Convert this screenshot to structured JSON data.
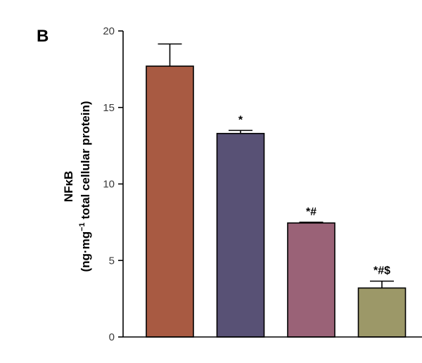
{
  "chart_data": {
    "type": "bar",
    "panel_label": "B",
    "ylabel_line1": "NFκB",
    "ylabel_line2_parts": [
      "(ng·mg",
      "−1",
      " total cellular protein)"
    ],
    "ylim": [
      0,
      20
    ],
    "yticks": [
      0,
      5,
      10,
      15,
      20
    ],
    "grid": false,
    "series": [
      {
        "values": [
          17.7,
          13.3,
          7.45,
          3.2
        ],
        "errors": [
          1.45,
          0.2,
          0.05,
          0.45
        ],
        "annotations": [
          "",
          "*",
          "*#",
          "*#$"
        ],
        "colors": [
          "#a85a42",
          "#585175",
          "#9a6277",
          "#9c9868"
        ]
      }
    ]
  }
}
